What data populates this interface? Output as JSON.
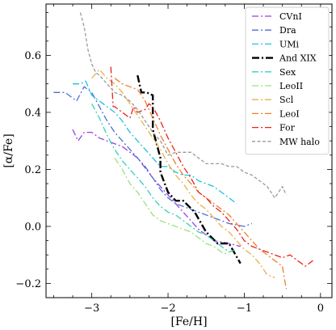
{
  "chart_data": {
    "type": "line",
    "xlabel": "[Fe/H]",
    "ylabel": "[α/Fe]",
    "xlim": [
      -3.6,
      0.15
    ],
    "ylim": [
      -0.25,
      0.78
    ],
    "xticks": [
      -3,
      -2,
      -1,
      0
    ],
    "yticks": [
      -0.2,
      0.0,
      0.2,
      0.4,
      0.6
    ],
    "xtick_labels": [
      "−3",
      "−2",
      "−1",
      "0"
    ],
    "ytick_labels": [
      "−0.2",
      "0.0",
      "0.2",
      "0.4",
      "0.6"
    ],
    "grid": false,
    "legend_position": "top-right",
    "series": [
      {
        "name": "CVnI",
        "color": "#9a3fe0",
        "dash": "dashdot",
        "x": [
          -3.25,
          -3.18,
          -3.1,
          -3.0,
          -2.9,
          -2.8,
          -2.6,
          -2.4,
          -2.2,
          -2.0,
          -1.8,
          -1.6,
          -1.4,
          -1.2,
          -1.05
        ],
        "y": [
          0.34,
          0.3,
          0.33,
          0.33,
          0.31,
          0.3,
          0.28,
          0.24,
          0.17,
          0.11,
          0.05,
          -0.01,
          -0.05,
          -0.06,
          -0.07
        ]
      },
      {
        "name": "Dra",
        "color": "#4a6fd9",
        "dash": "dashdot",
        "x": [
          -3.5,
          -3.35,
          -3.2,
          -3.1,
          -3.0,
          -2.9,
          -2.8,
          -2.7,
          -2.6,
          -2.5,
          -2.4,
          -2.3,
          -2.2,
          -2.1,
          -2.0,
          -1.9,
          -1.8,
          -1.6,
          -1.4,
          -1.2,
          -1.0,
          -0.9
        ],
        "y": [
          0.47,
          0.47,
          0.44,
          0.49,
          0.47,
          0.42,
          0.37,
          0.33,
          0.3,
          0.27,
          0.24,
          0.21,
          0.17,
          0.13,
          0.1,
          0.08,
          0.07,
          0.05,
          0.03,
          0.01,
          0.0,
          0.01
        ]
      },
      {
        "name": "UMi",
        "color": "#1cc2e0",
        "dash": "dashdot",
        "x": [
          -3.25,
          -3.15,
          -3.08,
          -3.0,
          -2.9,
          -2.8,
          -2.7,
          -2.6,
          -2.5,
          -2.4,
          -2.3,
          -2.2,
          -2.1,
          -2.0,
          -1.9,
          -1.8,
          -1.7,
          -1.6,
          -1.5,
          -1.4,
          -1.3,
          -1.2,
          -1.1
        ],
        "y": [
          0.5,
          0.5,
          0.51,
          0.46,
          0.44,
          0.42,
          0.4,
          0.37,
          0.33,
          0.3,
          0.27,
          0.24,
          0.21,
          0.21,
          0.19,
          0.18,
          0.18,
          0.16,
          0.15,
          0.14,
          0.12,
          0.1,
          0.08
        ]
      },
      {
        "name": "And XIX",
        "color": "#000000",
        "dash": "dashdotbold",
        "x": [
          -2.4,
          -2.35,
          -2.28,
          -2.2,
          -2.2,
          -2.1,
          -2.1,
          -2.0,
          -1.9,
          -1.8,
          -1.65,
          -1.5,
          -1.35,
          -1.2,
          -1.05
        ],
        "y": [
          0.53,
          0.47,
          0.47,
          0.46,
          0.34,
          0.24,
          0.19,
          0.12,
          0.09,
          0.09,
          0.05,
          -0.02,
          -0.06,
          -0.06,
          -0.13
        ]
      },
      {
        "name": "Sex",
        "color": "#36d1b8",
        "dash": "dashdot",
        "x": [
          -3.0,
          -2.9,
          -2.8,
          -2.7,
          -2.6,
          -2.5,
          -2.4,
          -2.3,
          -2.2,
          -2.1,
          -2.0,
          -1.9,
          -1.8,
          -1.7,
          -1.6,
          -1.5,
          -1.4,
          -1.3,
          -1.2,
          -1.1
        ],
        "y": [
          0.43,
          0.38,
          0.32,
          0.27,
          0.23,
          0.2,
          0.17,
          0.14,
          0.1,
          0.07,
          0.05,
          0.04,
          0.02,
          0.0,
          -0.02,
          -0.03,
          -0.05,
          -0.07,
          -0.09,
          -0.08
        ]
      },
      {
        "name": "LeoII",
        "color": "#99e27d",
        "dash": "dashdot",
        "x": [
          -2.7,
          -2.6,
          -2.5,
          -2.4,
          -2.3,
          -2.2,
          -2.1,
          -2.0,
          -1.9,
          -1.8,
          -1.7,
          -1.6,
          -1.5,
          -1.4,
          -1.3,
          -1.2
        ],
        "y": [
          0.24,
          0.2,
          0.15,
          0.12,
          0.08,
          0.04,
          0.02,
          0.01,
          0.0,
          -0.01,
          -0.02,
          -0.04,
          -0.06,
          -0.07,
          -0.09,
          -0.1
        ]
      },
      {
        "name": "Scl",
        "color": "#e8b04a",
        "dash": "dashdot",
        "x": [
          -3.0,
          -2.9,
          -2.8,
          -2.7,
          -2.6,
          -2.5,
          -2.4,
          -2.3,
          -2.2,
          -2.1,
          -2.0,
          -1.9,
          -1.8,
          -1.7,
          -1.6,
          -1.5,
          -1.4,
          -1.3,
          -1.2,
          -1.1,
          -1.0,
          -0.9,
          -0.8,
          -0.7,
          -0.6
        ],
        "y": [
          0.52,
          0.55,
          0.52,
          0.5,
          0.47,
          0.43,
          0.39,
          0.35,
          0.31,
          0.27,
          0.22,
          0.18,
          0.15,
          0.11,
          0.08,
          0.06,
          0.03,
          0.0,
          -0.02,
          -0.05,
          -0.08,
          -0.1,
          -0.13,
          -0.17,
          -0.18
        ]
      },
      {
        "name": "LeoI",
        "color": "#ef7d2e",
        "dash": "dashdot",
        "x": [
          -2.7,
          -2.6,
          -2.5,
          -2.4,
          -2.3,
          -2.2,
          -2.1,
          -2.0,
          -1.9,
          -1.8,
          -1.7,
          -1.6,
          -1.5,
          -1.4,
          -1.3,
          -1.2,
          -1.1,
          -1.0,
          -0.9,
          -0.8,
          -0.7,
          -0.6,
          -0.5,
          -0.45
        ],
        "y": [
          0.52,
          0.5,
          0.49,
          0.48,
          0.44,
          0.38,
          0.32,
          0.27,
          0.22,
          0.18,
          0.15,
          0.12,
          0.1,
          0.08,
          0.06,
          0.04,
          0.01,
          -0.02,
          -0.05,
          -0.08,
          -0.1,
          -0.12,
          -0.14,
          -0.22
        ]
      },
      {
        "name": "For",
        "color": "#e8231a",
        "dash": "dashdot",
        "x": [
          -2.75,
          -2.72,
          -2.7,
          -2.6,
          -2.5,
          -2.45,
          -2.4,
          -2.3,
          -2.25,
          -2.2,
          -2.1,
          -2.0,
          -1.9,
          -1.8,
          -1.7,
          -1.6,
          -1.5,
          -1.4,
          -1.3,
          -1.2,
          -1.1,
          -1.0,
          -0.9,
          -0.8,
          -0.7,
          -0.6,
          -0.5,
          -0.4,
          -0.3,
          -0.2,
          -0.1
        ],
        "y": [
          0.56,
          0.42,
          0.42,
          0.4,
          0.38,
          0.42,
          0.4,
          0.41,
          0.43,
          0.42,
          0.37,
          0.31,
          0.26,
          0.21,
          0.17,
          0.12,
          0.1,
          0.07,
          0.05,
          0.02,
          -0.01,
          -0.05,
          -0.07,
          -0.08,
          -0.09,
          -0.1,
          -0.11,
          -0.1,
          -0.12,
          -0.14,
          -0.12
        ]
      },
      {
        "name": "MW halo",
        "color": "#999999",
        "dash": "dashed",
        "x": [
          -3.15,
          -3.1,
          -3.05,
          -3.0,
          -2.95,
          -2.9,
          -2.8,
          -2.7,
          -2.6,
          -2.5,
          -2.4,
          -2.3,
          -2.2,
          -2.1,
          -2.0,
          -1.9,
          -1.8,
          -1.7,
          -1.6,
          -1.5,
          -1.4,
          -1.3,
          -1.2,
          -1.1,
          -1.0,
          -0.9,
          -0.8,
          -0.7,
          -0.6,
          -0.5,
          -0.45
        ],
        "y": [
          0.75,
          0.7,
          0.62,
          0.57,
          0.54,
          0.53,
          0.5,
          0.47,
          0.46,
          0.44,
          0.41,
          0.37,
          0.33,
          0.3,
          0.25,
          0.26,
          0.26,
          0.26,
          0.24,
          0.22,
          0.22,
          0.22,
          0.21,
          0.21,
          0.19,
          0.18,
          0.16,
          0.14,
          0.1,
          0.14,
          0.11
        ]
      }
    ]
  }
}
